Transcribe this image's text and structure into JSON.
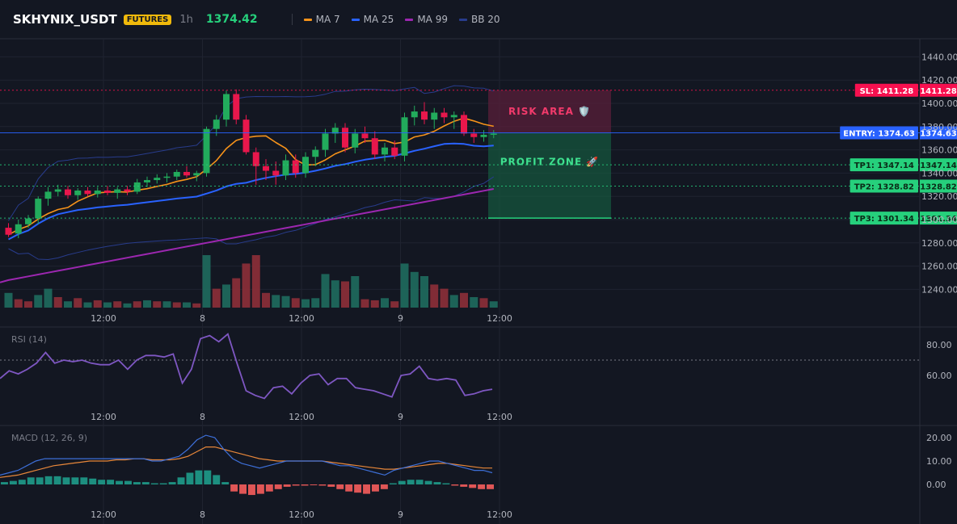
{
  "header": {
    "symbol": "SKHYNIX_USDT",
    "badge": "FUTURES",
    "timeframe": "1h",
    "last_price": "1374.42"
  },
  "legend": [
    {
      "label": "MA 7",
      "color": "#f7931a"
    },
    {
      "label": "MA 25",
      "color": "#2962ff"
    },
    {
      "label": "MA 99",
      "color": "#9c27b0"
    },
    {
      "label": "BB 20",
      "color": "#283c8c"
    }
  ],
  "zones": {
    "risk_label": "RISK AREA 🛡️",
    "profit_label": "PROFIT ZONE 🚀"
  },
  "colors": {
    "up": "#26a69a",
    "down": "#ef5350",
    "bull_candle": "#22ab5c",
    "bear_candle": "#e8174c",
    "sl": "#f7104f",
    "entry": "#2962ff",
    "tp": "#26d07c"
  },
  "chart_data": [
    {
      "type": "candlestick",
      "title": "SKHYNIX_USDT",
      "y_ticks": [
        "1440.00",
        "1420.00",
        "1400.00",
        "1380.00",
        "1360.00",
        "1340.00",
        "1320.00",
        "1300.00",
        "1280.00",
        "1260.00",
        "1240.00"
      ],
      "ylim": [
        1225,
        1445
      ],
      "x_ticks": [
        "12:00",
        "8",
        "12:00",
        "9",
        "12:00"
      ],
      "x_tick_index": [
        10,
        20,
        30,
        40,
        50
      ],
      "price_lines": [
        {
          "name": "SL",
          "value": 1411.28,
          "label": "SL: 1411.28",
          "price": "1411.28",
          "color": "#f7104f"
        },
        {
          "name": "ENTRY",
          "value": 1374.63,
          "label": "ENTRY: 1374.63",
          "price": "1374.63",
          "color": "#2962ff"
        },
        {
          "name": "TP1",
          "value": 1347.14,
          "label": "TP1: 1347.14",
          "price": "1347.14",
          "color": "#26d07c"
        },
        {
          "name": "TP2",
          "value": 1328.82,
          "label": "TP2: 1328.82",
          "price": "1328.82",
          "color": "#26d07c"
        },
        {
          "name": "TP3",
          "value": 1301.34,
          "label": "TP3: 1301.34",
          "price": "1301.34",
          "color": "#26d07c"
        }
      ],
      "ohlc": [
        [
          1293,
          1297,
          1285,
          1287
        ],
        [
          1288,
          1300,
          1284,
          1296
        ],
        [
          1296,
          1304,
          1293,
          1301
        ],
        [
          1301,
          1320,
          1296,
          1318
        ],
        [
          1318,
          1328,
          1312,
          1324
        ],
        [
          1324,
          1330,
          1320,
          1326
        ],
        [
          1326,
          1329,
          1318,
          1321
        ],
        [
          1321,
          1327,
          1317,
          1325
        ],
        [
          1325,
          1328,
          1320,
          1322
        ],
        [
          1322,
          1328,
          1319,
          1325
        ],
        [
          1325,
          1329,
          1321,
          1323
        ],
        [
          1323,
          1328,
          1318,
          1326
        ],
        [
          1326,
          1329,
          1321,
          1324
        ],
        [
          1324,
          1335,
          1322,
          1332
        ],
        [
          1332,
          1337,
          1328,
          1334
        ],
        [
          1334,
          1339,
          1331,
          1336
        ],
        [
          1336,
          1340,
          1332,
          1337
        ],
        [
          1337,
          1343,
          1334,
          1341
        ],
        [
          1341,
          1346,
          1336,
          1338
        ],
        [
          1338,
          1342,
          1333,
          1340
        ],
        [
          1340,
          1380,
          1337,
          1378
        ],
        [
          1378,
          1390,
          1372,
          1386
        ],
        [
          1386,
          1411,
          1380,
          1408
        ],
        [
          1408,
          1412,
          1382,
          1386
        ],
        [
          1386,
          1390,
          1356,
          1358
        ],
        [
          1358,
          1362,
          1330,
          1346
        ],
        [
          1346,
          1352,
          1334,
          1342
        ],
        [
          1342,
          1350,
          1330,
          1338
        ],
        [
          1338,
          1356,
          1334,
          1351
        ],
        [
          1351,
          1356,
          1336,
          1340
        ],
        [
          1340,
          1358,
          1336,
          1354
        ],
        [
          1354,
          1363,
          1346,
          1360
        ],
        [
          1360,
          1378,
          1354,
          1374
        ],
        [
          1374,
          1383,
          1366,
          1379
        ],
        [
          1379,
          1383,
          1358,
          1362
        ],
        [
          1362,
          1378,
          1357,
          1374
        ],
        [
          1374,
          1380,
          1366,
          1370
        ],
        [
          1370,
          1376,
          1352,
          1356
        ],
        [
          1356,
          1366,
          1350,
          1362
        ],
        [
          1362,
          1368,
          1352,
          1355
        ],
        [
          1355,
          1392,
          1350,
          1388
        ],
        [
          1388,
          1398,
          1381,
          1393
        ],
        [
          1393,
          1401,
          1382,
          1386
        ],
        [
          1386,
          1396,
          1378,
          1392
        ],
        [
          1392,
          1396,
          1383,
          1388
        ],
        [
          1388,
          1393,
          1378,
          1390
        ],
        [
          1390,
          1393,
          1372,
          1374
        ],
        [
          1374,
          1378,
          1366,
          1371
        ],
        [
          1371,
          1377,
          1367,
          1373
        ],
        [
          1373,
          1377,
          1370,
          1374
        ]
      ],
      "volume": [
        [
          0,
          14
        ],
        [
          1,
          8
        ],
        [
          1,
          6
        ],
        [
          0,
          12
        ],
        [
          0,
          18
        ],
        [
          1,
          10
        ],
        [
          0,
          6
        ],
        [
          1,
          9
        ],
        [
          0,
          5
        ],
        [
          1,
          7
        ],
        [
          0,
          5
        ],
        [
          1,
          6
        ],
        [
          0,
          4
        ],
        [
          1,
          6
        ],
        [
          0,
          7
        ],
        [
          1,
          6
        ],
        [
          0,
          6
        ],
        [
          1,
          5
        ],
        [
          0,
          5
        ],
        [
          1,
          4
        ],
        [
          0,
          50
        ],
        [
          1,
          18
        ],
        [
          0,
          22
        ],
        [
          1,
          28
        ],
        [
          1,
          42
        ],
        [
          1,
          50
        ],
        [
          1,
          14
        ],
        [
          0,
          12
        ],
        [
          0,
          11
        ],
        [
          1,
          9
        ],
        [
          0,
          8
        ],
        [
          0,
          9
        ],
        [
          0,
          32
        ],
        [
          0,
          26
        ],
        [
          1,
          25
        ],
        [
          0,
          30
        ],
        [
          1,
          8
        ],
        [
          1,
          7
        ],
        [
          0,
          9
        ],
        [
          1,
          6
        ],
        [
          0,
          42
        ],
        [
          0,
          34
        ],
        [
          0,
          30
        ],
        [
          1,
          22
        ],
        [
          1,
          18
        ],
        [
          0,
          12
        ],
        [
          1,
          14
        ],
        [
          0,
          10
        ],
        [
          1,
          9
        ],
        [
          0,
          6
        ]
      ]
    },
    {
      "type": "line",
      "title": "RSI (14)",
      "y_ticks": [
        "80.00",
        "60.00"
      ],
      "ylim": [
        36,
        92
      ],
      "reference_line": 70,
      "x_ticks": [
        "12:00",
        "8",
        "12:00",
        "9",
        "12:00"
      ],
      "values": [
        58,
        63,
        61,
        64,
        68,
        75,
        68,
        70,
        69,
        70,
        68,
        67,
        67,
        70,
        64,
        70,
        73,
        73,
        72,
        74,
        55,
        64,
        84,
        86,
        82,
        87,
        68,
        50,
        47,
        45,
        52,
        53,
        48,
        55,
        60,
        61,
        54,
        58,
        58,
        52,
        51,
        50,
        48,
        46,
        60,
        61,
        66,
        58,
        57,
        58,
        57,
        47,
        48,
        50,
        51
      ]
    },
    {
      "type": "bar+line",
      "title": "MACD (12, 26, 9)",
      "y_ticks": [
        "20.00",
        "10.00",
        "0.00"
      ],
      "ylim": [
        -8,
        23
      ],
      "x_ticks": [
        "12:00",
        "8",
        "12:00",
        "9",
        "12:00"
      ],
      "series": [
        {
          "name": "MACD",
          "color": "#3d6fd8",
          "values": [
            4,
            5,
            6,
            8,
            10,
            11,
            11,
            11,
            11,
            11,
            11,
            11,
            11,
            11,
            11,
            11,
            11,
            10,
            10,
            11,
            12,
            15,
            19,
            21,
            20,
            15,
            11,
            9,
            8,
            7,
            8,
            9,
            10,
            10,
            10,
            10,
            10,
            9,
            8,
            8,
            7,
            6,
            5,
            4,
            6,
            7,
            8,
            9,
            10,
            10,
            9,
            8,
            7,
            6,
            6,
            5
          ]
        },
        {
          "name": "Signal",
          "color": "#e8873a",
          "values": [
            3,
            3.5,
            4,
            5,
            6,
            7,
            8,
            8.5,
            9,
            9.5,
            10,
            10,
            10,
            10.5,
            10.5,
            11,
            11,
            10.5,
            10.5,
            10.5,
            11,
            12,
            14,
            16,
            16,
            15,
            14,
            13,
            12,
            11,
            10.5,
            10,
            10,
            10,
            10,
            10,
            10,
            9.5,
            9,
            8.5,
            8,
            7.5,
            7,
            6.5,
            6.5,
            7,
            7.5,
            8,
            8.5,
            9,
            9,
            8.5,
            8,
            7.5,
            7,
            7
          ]
        },
        {
          "name": "Histogram",
          "color": "#26a69a",
          "values": [
            1,
            1.5,
            2,
            3,
            3,
            3.5,
            3.5,
            3,
            3,
            3,
            2.5,
            2,
            2,
            1.5,
            1.5,
            1,
            1,
            0.5,
            0.5,
            1,
            3,
            5,
            6,
            6,
            4,
            1,
            -3,
            -4,
            -4.5,
            -4,
            -3,
            -2,
            -1,
            -0.5,
            -0.5,
            -0.3,
            -0.5,
            -1,
            -2,
            -3,
            -3.5,
            -4,
            -3,
            -2,
            0.5,
            1.5,
            2,
            2,
            1.5,
            1,
            0.5,
            -0.5,
            -1,
            -1.5,
            -2,
            -2
          ]
        }
      ]
    }
  ]
}
